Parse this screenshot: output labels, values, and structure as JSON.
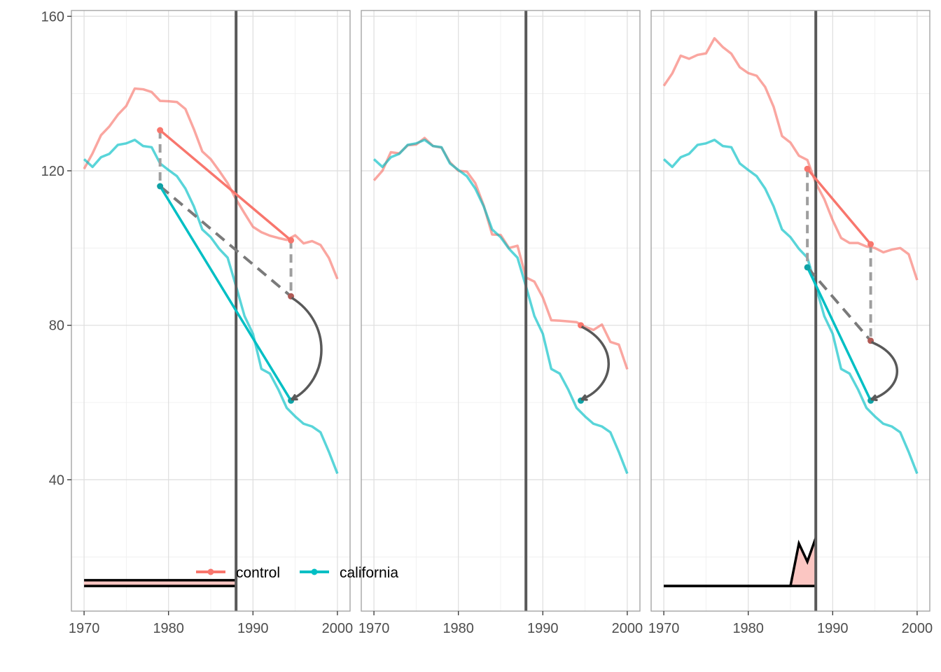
{
  "chart_data": {
    "type": "line",
    "layout": "three facets side by side, shared y axis",
    "grid": true,
    "legend": {
      "placement": "bottom-center, inside first panel",
      "entries": [
        {
          "name": "control",
          "color": "#f8766d"
        },
        {
          "name": "california",
          "color": "#00bfc4"
        }
      ]
    },
    "x_ticks": [
      1970,
      1980,
      1990,
      2000
    ],
    "x_tick_labels": [
      "1970",
      "1980",
      "1990",
      "2000"
    ],
    "xlim": [
      1968.5,
      2001.5
    ],
    "y_ticks": [
      40,
      80,
      120,
      160
    ],
    "y_tick_labels": [
      "40",
      "80",
      "120",
      "160"
    ],
    "ylim": [
      6,
      161.5
    ],
    "treatment_year": 1988,
    "colors": {
      "control": "#f8766d",
      "california": "#00bfc4",
      "reference": "#595959",
      "weight_fill": "#fbc6c2"
    },
    "panels": [
      {
        "x": [
          1970,
          1971,
          1972,
          1973,
          1974,
          1975,
          1976,
          1977,
          1978,
          1979,
          1980,
          1981,
          1982,
          1983,
          1984,
          1985,
          1986,
          1987,
          1988,
          1989,
          1990,
          1991,
          1992,
          1993,
          1994,
          1995,
          1996,
          1997,
          1998,
          1999,
          2000
        ],
        "series": [
          {
            "name": "control",
            "values": [
              120.5,
              124.5,
              129.2,
              131.5,
              134.5,
              136.8,
              141.3,
              141.1,
              140.4,
              138.1,
              138.0,
              137.8,
              136.0,
              130.8,
              125.0,
              123.0,
              120.0,
              116.8,
              112.6,
              109.0,
              105.5,
              104.1,
              103.2,
              102.6,
              102.1,
              103.3,
              101.2,
              101.8,
              100.8,
              97.4,
              92.0
            ]
          },
          {
            "name": "california",
            "values": [
              123.0,
              121.0,
              123.5,
              124.4,
              126.7,
              127.1,
              128.0,
              126.4,
              126.1,
              121.9,
              120.2,
              118.6,
              115.4,
              110.8,
              104.8,
              102.8,
              99.8,
              97.5,
              90.1,
              82.4,
              77.8,
              68.7,
              67.5,
              63.4,
              58.6,
              56.4,
              54.5,
              53.8,
              52.3,
              47.2,
              41.6
            ]
          }
        ],
        "did": {
          "pre_year": 1979,
          "post_year": 1994.5,
          "control_pre": 130.5,
          "control_post": 102.0,
          "california_pre": 116.0,
          "california_post": 60.5,
          "counterfactual_post": 87.5
        },
        "weights": {
          "x": [
            1970,
            1988
          ],
          "upper": [
            14,
            14
          ],
          "lower": [
            12.5,
            12.5
          ]
        }
      },
      {
        "x": [
          1970,
          1971,
          1972,
          1973,
          1974,
          1975,
          1976,
          1977,
          1978,
          1979,
          1980,
          1981,
          1982,
          1983,
          1984,
          1985,
          1986,
          1987,
          1988,
          1989,
          1990,
          1991,
          1992,
          1993,
          1994,
          1995,
          1996,
          1997,
          1998,
          1999,
          2000
        ],
        "series": [
          {
            "name": "control",
            "values": [
              117.5,
              120.0,
              124.8,
              124.5,
              126.6,
              126.8,
              128.5,
              126.4,
              126.0,
              122.2,
              120.0,
              119.8,
              116.8,
              111.0,
              103.5,
              103.4,
              100.0,
              100.6,
              92.4,
              91.3,
              87.2,
              81.3,
              81.2,
              81.0,
              80.8,
              79.6,
              78.8,
              80.2,
              75.7,
              75.0,
              68.6
            ]
          },
          {
            "name": "california",
            "values": [
              123.0,
              121.0,
              123.5,
              124.4,
              126.7,
              127.1,
              128.0,
              126.4,
              126.1,
              121.9,
              120.2,
              118.6,
              115.4,
              110.8,
              104.8,
              102.8,
              99.8,
              97.5,
              90.1,
              82.4,
              77.8,
              68.7,
              67.5,
              63.4,
              58.6,
              56.4,
              54.5,
              53.8,
              52.3,
              47.2,
              41.6
            ]
          }
        ],
        "did": {
          "post_year": 1994.5,
          "control_post": 80.0,
          "california_post": 60.5
        }
      },
      {
        "x": [
          1970,
          1971,
          1972,
          1973,
          1974,
          1975,
          1976,
          1977,
          1978,
          1979,
          1980,
          1981,
          1982,
          1983,
          1984,
          1985,
          1986,
          1987,
          1988,
          1989,
          1990,
          1991,
          1992,
          1993,
          1994,
          1995,
          1996,
          1997,
          1998,
          1999,
          2000
        ],
        "series": [
          {
            "name": "control",
            "values": [
              142.0,
              145.2,
              149.8,
              149.0,
              150.0,
              150.4,
              154.3,
              152.0,
              150.3,
              146.8,
              145.3,
              144.6,
              141.7,
              136.6,
              129.0,
              127.3,
              123.9,
              122.8,
              116.8,
              112.7,
              107.2,
              102.6,
              101.3,
              101.3,
              100.4,
              100.0,
              98.9,
              99.6,
              100.0,
              98.4,
              91.7
            ]
          },
          {
            "name": "california",
            "values": [
              123.0,
              121.0,
              123.5,
              124.4,
              126.7,
              127.1,
              128.0,
              126.4,
              126.1,
              121.9,
              120.2,
              118.6,
              115.4,
              110.8,
              104.8,
              102.8,
              99.8,
              97.5,
              90.1,
              82.4,
              77.8,
              68.7,
              67.5,
              63.4,
              58.6,
              56.4,
              54.5,
              53.8,
              52.3,
              47.2,
              41.6
            ]
          }
        ],
        "did": {
          "pre_year": 1987,
          "post_year": 1994.5,
          "control_pre": 120.5,
          "control_post": 101.0,
          "california_pre": 95.0,
          "california_post": 60.5,
          "counterfactual_post": 76.0
        },
        "weights": {
          "x": [
            1970,
            1985,
            1986,
            1987,
            1988
          ],
          "upper": [
            12.5,
            12.5,
            23.5,
            18.8,
            25.0
          ],
          "lower": [
            12.5,
            12.5,
            12.5,
            12.5,
            12.5
          ]
        }
      }
    ]
  }
}
